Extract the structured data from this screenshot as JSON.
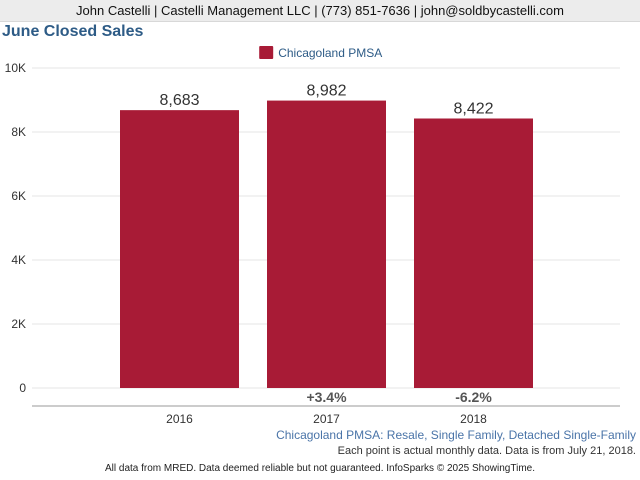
{
  "header": {
    "contact": "John Castelli | Castelli Management LLC | (773) 851-7636 | john@soldbycastelli.com"
  },
  "colors": {
    "bar": "#a81b36",
    "title": "#2d5b86",
    "subtitle": "#4a74a8",
    "grid": "#e4e4e4",
    "axis": "#999999"
  },
  "chart_data": {
    "type": "bar",
    "title": "June Closed Sales",
    "categories": [
      "2016",
      "2017",
      "2018"
    ],
    "series": [
      {
        "name": "Chicagoland PMSA",
        "values": [
          8683,
          8982,
          8422
        ],
        "value_labels": [
          "8,683",
          "8,982",
          "8,422"
        ],
        "change_labels": [
          "",
          "+3.4%",
          "-6.2%"
        ]
      }
    ],
    "ylim": [
      0,
      10000
    ],
    "yticks": [
      0,
      2000,
      4000,
      6000,
      8000,
      10000
    ],
    "ytick_labels": [
      "0",
      "2K",
      "4K",
      "6K",
      "8K",
      "10K"
    ],
    "grid": true,
    "legend_position": "top-center",
    "subtitle": "Chicagoland PMSA: Resale, Single Family, Detached Single-Family",
    "note": "Each point is actual monthly data. Data is from July 21, 2018."
  },
  "footer": {
    "disclaimer": "All data from MRED. Data deemed reliable but not guaranteed. InfoSparks © 2025 ShowingTime."
  }
}
